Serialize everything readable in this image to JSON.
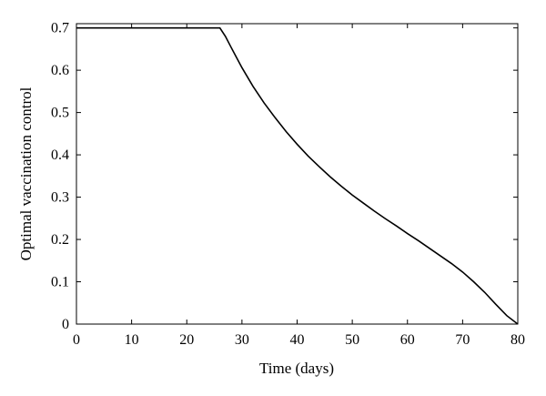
{
  "chart_data": {
    "type": "line",
    "xlabel": "Time (days)",
    "ylabel": "Optimal vaccination control",
    "xlim": [
      0,
      80
    ],
    "ylim": [
      0,
      0.71
    ],
    "x_ticks": [
      0,
      10,
      20,
      30,
      40,
      50,
      60,
      70,
      80
    ],
    "x_tick_labels": [
      "0",
      "10",
      "20",
      "30",
      "40",
      "50",
      "60",
      "70",
      "80"
    ],
    "y_ticks": [
      0,
      0.1,
      0.2,
      0.3,
      0.4,
      0.5,
      0.6,
      0.7
    ],
    "y_tick_labels": [
      "0",
      "0.1",
      "0.2",
      "0.3",
      "0.4",
      "0.5",
      "0.6",
      "0.7"
    ],
    "grid": false,
    "legend": false,
    "line_color": "#000000",
    "series": [
      {
        "x": [
          0,
          5,
          10,
          15,
          20,
          25,
          26,
          27,
          28,
          30,
          32,
          34,
          36,
          38,
          40,
          42,
          44,
          46,
          48,
          50,
          52,
          54,
          56,
          58,
          60,
          62,
          64,
          66,
          68,
          70,
          72,
          74,
          76,
          78,
          80
        ],
        "values": [
          0.7,
          0.7,
          0.7,
          0.7,
          0.7,
          0.7,
          0.7,
          0.68,
          0.655,
          0.606,
          0.562,
          0.523,
          0.488,
          0.455,
          0.425,
          0.397,
          0.372,
          0.348,
          0.326,
          0.305,
          0.286,
          0.267,
          0.249,
          0.232,
          0.214,
          0.197,
          0.179,
          0.161,
          0.143,
          0.123,
          0.1,
          0.075,
          0.047,
          0.02,
          0.0
        ]
      }
    ]
  }
}
